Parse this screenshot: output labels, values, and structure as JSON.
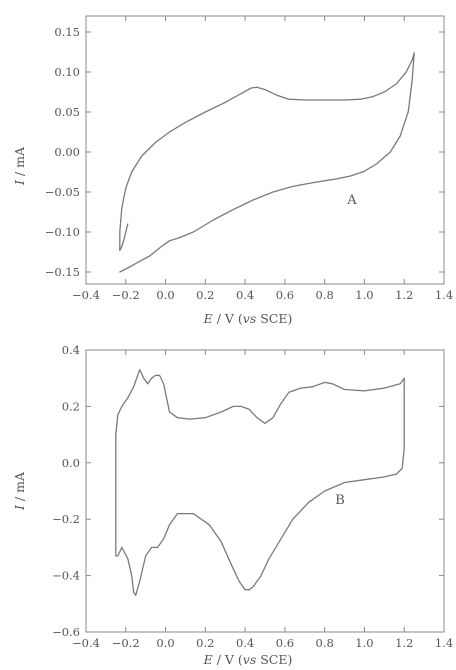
{
  "chart_data": [
    {
      "type": "line",
      "panel_label": "A",
      "xlabel": {
        "italic": "E",
        "rest": " / V (",
        "italic2": "vs",
        "rest2": " SCE)"
      },
      "ylabel": {
        "italic": "I",
        "rest": " / mA"
      },
      "xlim": [
        -0.4,
        1.4
      ],
      "ylim": [
        -0.165,
        0.17
      ],
      "xticks": [
        -0.4,
        -0.2,
        0.0,
        0.2,
        0.4,
        0.6,
        0.8,
        1.0,
        1.2,
        1.4
      ],
      "yticks": [
        -0.15,
        -0.1,
        -0.05,
        0.0,
        0.05,
        0.1,
        0.15
      ],
      "xtick_labels": [
        "−0.4",
        "−0.2",
        "0.0",
        "0.2",
        "0.4",
        "0.6",
        "0.8",
        "1.0",
        "1.2",
        "1.4"
      ],
      "ytick_labels": [
        "−0.15",
        "−0.10",
        "−0.05",
        "0.00",
        "0.05",
        "0.10",
        "0.15"
      ],
      "grid": false,
      "series": [
        {
          "x": [
            -0.19,
            -0.2,
            -0.21,
            -0.22,
            -0.23,
            -0.23,
            -0.22,
            -0.2,
            -0.17,
            -0.12,
            -0.05,
            0.02,
            0.1,
            0.2,
            0.3,
            0.38,
            0.43,
            0.46,
            0.5,
            0.56,
            0.62,
            0.7,
            0.8,
            0.9,
            0.98,
            1.04,
            1.1,
            1.16,
            1.21,
            1.24,
            1.25,
            1.24,
            1.22,
            1.18,
            1.13,
            1.06,
            1.0,
            0.93,
            0.85,
            0.75,
            0.64,
            0.54,
            0.44,
            0.34,
            0.24,
            0.14,
            0.06,
            0.02,
            -0.02,
            -0.08,
            -0.14,
            -0.19,
            -0.23
          ],
          "y": [
            -0.09,
            -0.1,
            -0.11,
            -0.118,
            -0.123,
            -0.1,
            -0.07,
            -0.045,
            -0.025,
            -0.005,
            0.012,
            0.025,
            0.037,
            0.05,
            0.062,
            0.073,
            0.08,
            0.081,
            0.078,
            0.071,
            0.066,
            0.065,
            0.065,
            0.065,
            0.066,
            0.069,
            0.075,
            0.085,
            0.1,
            0.115,
            0.124,
            0.09,
            0.05,
            0.02,
            0.0,
            -0.015,
            -0.024,
            -0.03,
            -0.034,
            -0.038,
            -0.043,
            -0.05,
            -0.06,
            -0.072,
            -0.085,
            -0.1,
            -0.108,
            -0.111,
            -0.118,
            -0.13,
            -0.138,
            -0.145,
            -0.15
          ]
        }
      ]
    },
    {
      "type": "line",
      "panel_label": "B",
      "xlabel": {
        "italic": "E",
        "rest": " / V (",
        "italic2": "vs",
        "rest2": " SCE)"
      },
      "ylabel": {
        "italic": "I",
        "rest": " / mA"
      },
      "xlim": [
        -0.4,
        1.4
      ],
      "ylim": [
        -0.6,
        0.4
      ],
      "xticks": [
        -0.4,
        -0.2,
        0.0,
        0.2,
        0.4,
        0.6,
        0.8,
        1.0,
        1.2,
        1.4
      ],
      "yticks": [
        -0.6,
        -0.4,
        -0.2,
        0.0,
        0.2,
        0.4
      ],
      "xtick_labels": [
        "−0.4",
        "−0.2",
        "0.0",
        "0.2",
        "0.4",
        "0.6",
        "0.8",
        "1.0",
        "1.2",
        "1.4"
      ],
      "ytick_labels": [
        "−0.6",
        "−0.4",
        "−0.2",
        "0.0",
        "0.2",
        "0.4"
      ],
      "grid": false,
      "series": [
        {
          "x": [
            -0.25,
            -0.25,
            -0.24,
            -0.22,
            -0.19,
            -0.16,
            -0.13,
            -0.11,
            -0.09,
            -0.07,
            -0.05,
            -0.03,
            -0.01,
            0.02,
            0.06,
            0.12,
            0.2,
            0.28,
            0.34,
            0.38,
            0.42,
            0.46,
            0.5,
            0.54,
            0.58,
            0.62,
            0.68,
            0.74,
            0.8,
            0.84,
            0.9,
            1.0,
            1.1,
            1.18,
            1.2,
            1.2,
            1.2,
            1.19,
            1.16,
            1.1,
            1.0,
            0.9,
            0.8,
            0.72,
            0.64,
            0.58,
            0.52,
            0.48,
            0.44,
            0.42,
            0.4,
            0.37,
            0.33,
            0.28,
            0.22,
            0.14,
            0.06,
            0.02,
            -0.01,
            -0.04,
            -0.07,
            -0.1,
            -0.13,
            -0.15,
            -0.16,
            -0.17,
            -0.19,
            -0.22,
            -0.24,
            -0.25
          ],
          "y": [
            -0.33,
            0.1,
            0.17,
            0.2,
            0.23,
            0.27,
            0.33,
            0.3,
            0.28,
            0.3,
            0.31,
            0.31,
            0.28,
            0.18,
            0.16,
            0.155,
            0.16,
            0.18,
            0.2,
            0.2,
            0.19,
            0.16,
            0.14,
            0.16,
            0.21,
            0.25,
            0.265,
            0.27,
            0.285,
            0.28,
            0.26,
            0.255,
            0.265,
            0.28,
            0.3,
            0.25,
            0.05,
            -0.02,
            -0.04,
            -0.05,
            -0.06,
            -0.07,
            -0.1,
            -0.14,
            -0.2,
            -0.27,
            -0.34,
            -0.4,
            -0.44,
            -0.45,
            -0.45,
            -0.42,
            -0.36,
            -0.28,
            -0.22,
            -0.18,
            -0.18,
            -0.22,
            -0.27,
            -0.3,
            -0.3,
            -0.33,
            -0.42,
            -0.47,
            -0.46,
            -0.4,
            -0.34,
            -0.3,
            -0.33,
            -0.33
          ]
        }
      ]
    }
  ]
}
